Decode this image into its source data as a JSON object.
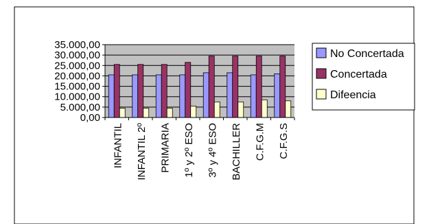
{
  "chart_data": {
    "type": "bar",
    "title": "",
    "xlabel": "",
    "ylabel": "",
    "ylim": [
      0,
      35000
    ],
    "y_ticks": [
      "35.000,00",
      "30.000,00",
      "25.000,00",
      "20.000,00",
      "15.000,00",
      "10.000,00",
      "5.000,00",
      "0,00"
    ],
    "y_tick_values": [
      35000,
      30000,
      25000,
      20000,
      15000,
      10000,
      5000,
      0
    ],
    "categories": [
      "INFANTIL",
      "INFANTIL 2º",
      "PRIMARIA",
      "1º y 2º ESO",
      "3º y 4º ESO",
      "BACHILLER",
      "C.F.G.M",
      "C.F.G.S"
    ],
    "grid": true,
    "legend_position": "right",
    "plot_background": "#c0c0c0",
    "series": [
      {
        "name": "No Concertada",
        "color": "#9999ff",
        "values": [
          20500,
          20500,
          20500,
          20500,
          21500,
          21500,
          20500,
          21000
        ]
      },
      {
        "name": "Concertada",
        "color": "#993366",
        "values": [
          25500,
          25500,
          25500,
          26500,
          29500,
          29500,
          29500,
          29500
        ]
      },
      {
        "name": "Difeencia",
        "color": "#ffffcc",
        "values": [
          4500,
          4500,
          4500,
          5500,
          7500,
          7500,
          8500,
          8000
        ]
      }
    ]
  }
}
